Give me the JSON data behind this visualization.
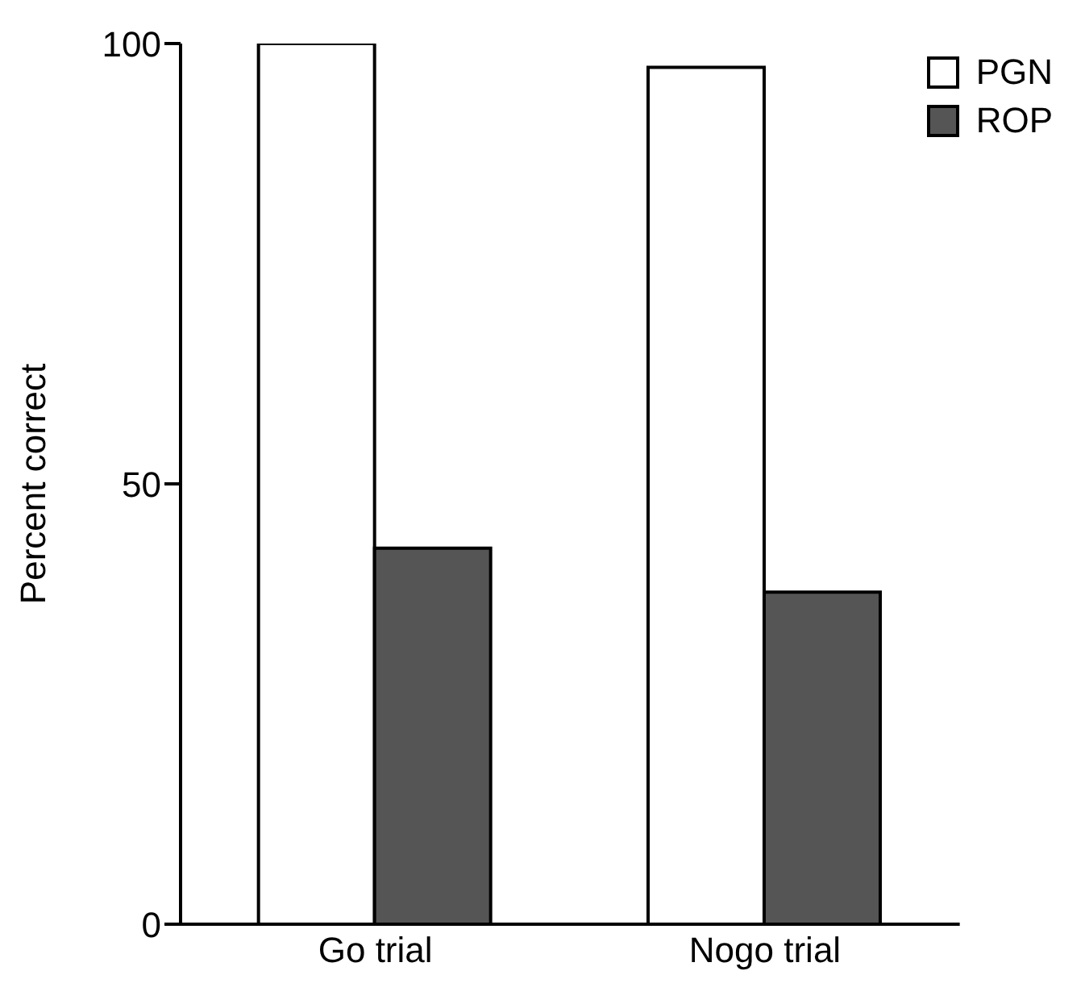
{
  "chart_data": {
    "type": "bar",
    "ylabel": "Percent correct",
    "categories": [
      "Go trial",
      "Nogo trial"
    ],
    "series": [
      {
        "name": "PGN",
        "color": "#ffffff",
        "values": [
          100,
          97.3
        ]
      },
      {
        "name": "ROP",
        "color": "#555555",
        "values": [
          42.7,
          37.7
        ]
      }
    ],
    "ylim": [
      0,
      100
    ],
    "yticks": [
      0,
      50,
      100
    ],
    "legend": "top right"
  }
}
